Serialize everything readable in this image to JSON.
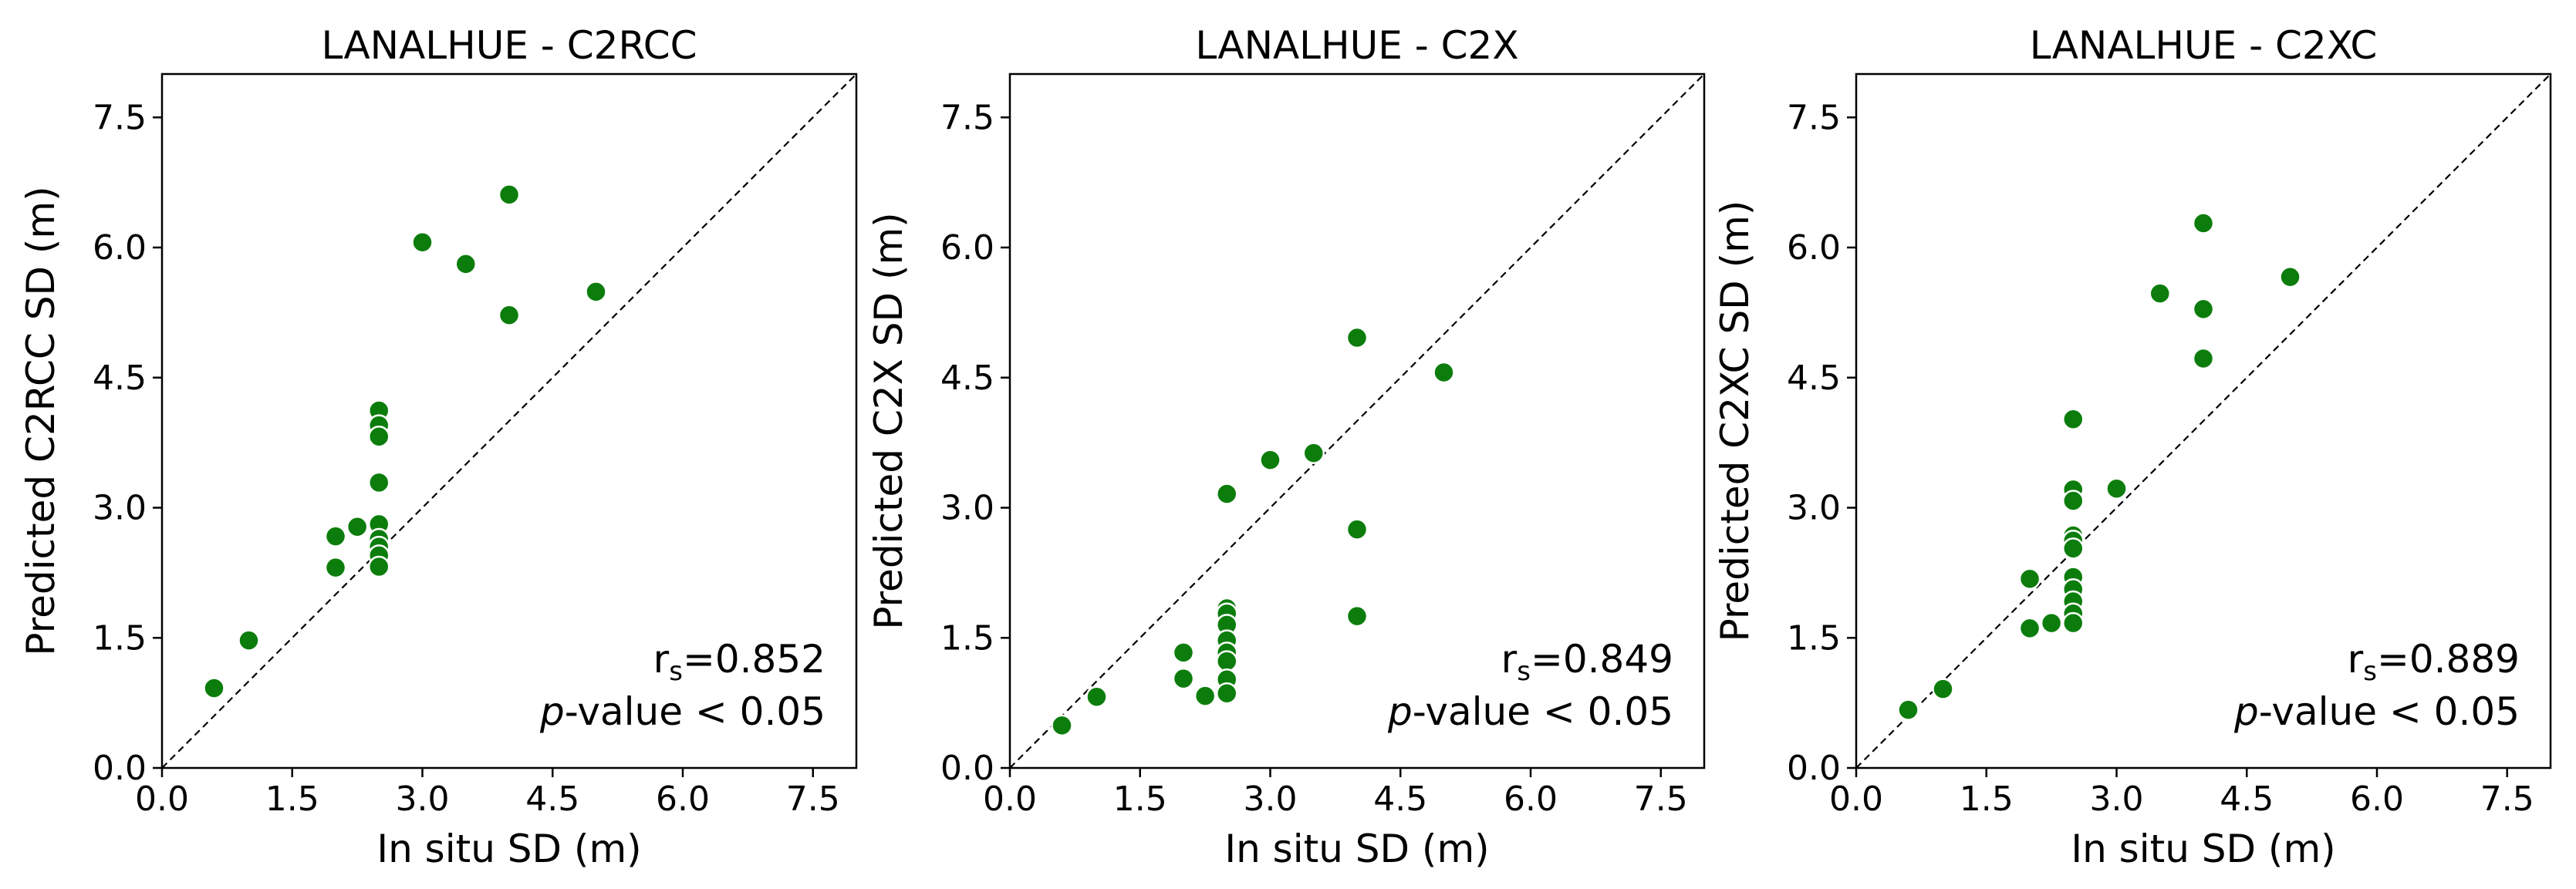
{
  "chart_data": [
    {
      "type": "scatter",
      "title": "LANALHUE - C2RCC",
      "xlabel": "In situ SD (m)",
      "ylabel": "Predicted C2RCC SD (m)",
      "xlim": [
        0,
        8
      ],
      "ylim": [
        0,
        8
      ],
      "xticks": [
        "0.0",
        "1.5",
        "3.0",
        "4.5",
        "6.0",
        "7.5"
      ],
      "yticks": [
        "0.0",
        "1.5",
        "3.0",
        "4.5",
        "6.0",
        "7.5"
      ],
      "tick_values": [
        0,
        1.5,
        3.0,
        4.5,
        6.0,
        7.5
      ],
      "reference_line": "1:1 dashed",
      "stat_r_symbol": "r",
      "stat_r_sub": "s",
      "stat_r_value": "=0.852",
      "stat_p_italic": "p",
      "stat_p_text": "-value < 0.05",
      "points": [
        [
          0.6,
          0.92
        ],
        [
          1.0,
          1.47
        ],
        [
          2.0,
          2.67
        ],
        [
          2.0,
          2.31
        ],
        [
          2.25,
          2.78
        ],
        [
          2.5,
          4.12
        ],
        [
          2.5,
          3.95
        ],
        [
          2.5,
          3.82
        ],
        [
          2.5,
          3.29
        ],
        [
          2.5,
          2.81
        ],
        [
          2.5,
          2.64
        ],
        [
          2.5,
          2.55
        ],
        [
          2.5,
          2.45
        ],
        [
          2.5,
          2.32
        ],
        [
          3.0,
          6.06
        ],
        [
          3.5,
          5.81
        ],
        [
          4.0,
          6.61
        ],
        [
          4.0,
          5.22
        ],
        [
          5.0,
          5.49
        ]
      ]
    },
    {
      "type": "scatter",
      "title": "LANALHUE - C2X",
      "xlabel": "In situ SD (m)",
      "ylabel": "Predicted C2X SD (m)",
      "xlim": [
        0,
        8
      ],
      "ylim": [
        0,
        8
      ],
      "xticks": [
        "0.0",
        "1.5",
        "3.0",
        "4.5",
        "6.0",
        "7.5"
      ],
      "yticks": [
        "0.0",
        "1.5",
        "3.0",
        "4.5",
        "6.0",
        "7.5"
      ],
      "tick_values": [
        0,
        1.5,
        3.0,
        4.5,
        6.0,
        7.5
      ],
      "reference_line": "1:1 dashed",
      "stat_r_symbol": "r",
      "stat_r_sub": "s",
      "stat_r_value": "=0.849",
      "stat_p_italic": "p",
      "stat_p_text": "-value < 0.05",
      "points": [
        [
          0.6,
          0.49
        ],
        [
          1.0,
          0.82
        ],
        [
          2.0,
          1.33
        ],
        [
          2.0,
          1.03
        ],
        [
          2.25,
          0.83
        ],
        [
          2.5,
          1.84
        ],
        [
          2.5,
          1.78
        ],
        [
          2.5,
          1.65
        ],
        [
          2.5,
          1.47
        ],
        [
          2.5,
          1.33
        ],
        [
          2.5,
          1.23
        ],
        [
          2.5,
          1.02
        ],
        [
          2.5,
          0.86
        ],
        [
          2.5,
          3.16
        ],
        [
          3.0,
          3.55
        ],
        [
          3.5,
          3.63
        ],
        [
          4.0,
          4.96
        ],
        [
          4.0,
          2.75
        ],
        [
          4.0,
          1.75
        ],
        [
          5.0,
          4.56
        ]
      ]
    },
    {
      "type": "scatter",
      "title": "LANALHUE - C2XC",
      "xlabel": "In situ SD (m)",
      "ylabel": "Predicted C2XC SD (m)",
      "xlim": [
        0,
        8
      ],
      "ylim": [
        0,
        8
      ],
      "xticks": [
        "0.0",
        "1.5",
        "3.0",
        "4.5",
        "6.0",
        "7.5"
      ],
      "yticks": [
        "0.0",
        "1.5",
        "3.0",
        "4.5",
        "6.0",
        "7.5"
      ],
      "tick_values": [
        0,
        1.5,
        3.0,
        4.5,
        6.0,
        7.5
      ],
      "reference_line": "1:1 dashed",
      "stat_r_symbol": "r",
      "stat_r_sub": "s",
      "stat_r_value": "=0.889",
      "stat_p_italic": "p",
      "stat_p_text": "-value < 0.05",
      "points": [
        [
          0.6,
          0.67
        ],
        [
          1.0,
          0.91
        ],
        [
          2.0,
          2.18
        ],
        [
          2.0,
          1.61
        ],
        [
          2.25,
          1.67
        ],
        [
          2.5,
          4.02
        ],
        [
          2.5,
          3.21
        ],
        [
          2.5,
          3.08
        ],
        [
          2.5,
          2.68
        ],
        [
          2.5,
          2.62
        ],
        [
          2.5,
          2.53
        ],
        [
          2.5,
          2.2
        ],
        [
          2.5,
          2.06
        ],
        [
          2.5,
          1.92
        ],
        [
          2.5,
          1.78
        ],
        [
          2.5,
          1.67
        ],
        [
          3.0,
          3.22
        ],
        [
          3.5,
          5.47
        ],
        [
          4.0,
          6.28
        ],
        [
          4.0,
          5.29
        ],
        [
          4.0,
          4.72
        ],
        [
          5.0,
          5.66
        ]
      ]
    }
  ],
  "colors": {
    "marker": "#0c7d0c",
    "marker_edge": "#ffffff",
    "axes": "#000000"
  }
}
